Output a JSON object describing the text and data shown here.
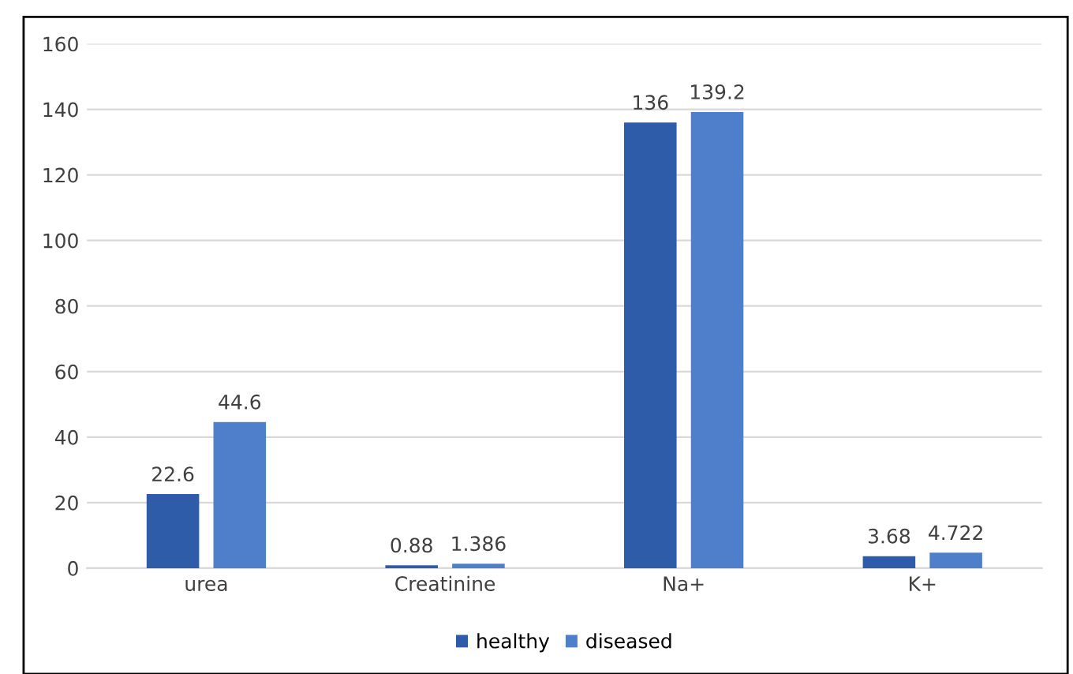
{
  "chart_data": {
    "type": "bar",
    "categories": [
      "urea",
      "Creatinine",
      "Na+",
      "K+"
    ],
    "series": [
      {
        "name": "healthy",
        "color": "#2f5ca8",
        "values": [
          22.6,
          0.88,
          136,
          3.68
        ]
      },
      {
        "name": "diseased",
        "color": "#4f7fca",
        "values": [
          44.6,
          1.386,
          139.2,
          4.722
        ]
      }
    ],
    "ylim": [
      0,
      160
    ],
    "yticks": [
      0,
      20,
      40,
      60,
      80,
      100,
      120,
      140,
      160
    ],
    "grid": "y",
    "legend": "bottom",
    "data_labels": true
  }
}
